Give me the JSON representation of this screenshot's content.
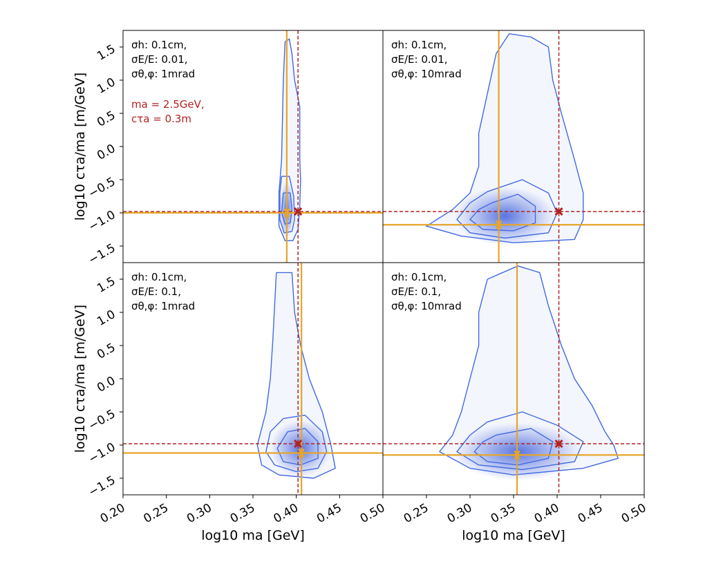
{
  "chart_data": [
    {
      "type": "heatmap",
      "panel": "top-left",
      "annotations": [
        "σh:    0.1cm,",
        "σE/E: 0.01,",
        "σθ,φ: 1mrad"
      ],
      "truth_label": [
        "ma = 2.5GeV,",
        "cτa = 0.3m"
      ],
      "xlim": [
        0.2,
        0.5
      ],
      "ylim": [
        -1.75,
        1.75
      ],
      "truth": {
        "x": 0.402,
        "y": -0.98
      },
      "estimate": {
        "x": 0.389,
        "y": -1.0
      },
      "density_peak": {
        "x": 0.389,
        "y": -0.95
      },
      "contours": [
        [
          [
            0.387,
            1.58
          ],
          [
            0.392,
            1.62
          ],
          [
            0.395,
            1.4
          ],
          [
            0.398,
            1.0
          ],
          [
            0.404,
            0.6
          ],
          [
            0.404,
            0.2
          ],
          [
            0.404,
            -0.2
          ],
          [
            0.405,
            -0.5
          ],
          [
            0.404,
            -0.9
          ],
          [
            0.402,
            -1.25
          ],
          [
            0.396,
            -1.42
          ],
          [
            0.387,
            -1.42
          ],
          [
            0.38,
            -1.2
          ],
          [
            0.38,
            -0.7
          ],
          [
            0.383,
            -0.2
          ],
          [
            0.384,
            0.4
          ],
          [
            0.385,
            1.0
          ],
          [
            0.387,
            1.58
          ]
        ],
        [
          [
            0.383,
            -0.45
          ],
          [
            0.392,
            -0.45
          ],
          [
            0.397,
            -0.75
          ],
          [
            0.398,
            -1.1
          ],
          [
            0.395,
            -1.28
          ],
          [
            0.386,
            -1.3
          ],
          [
            0.381,
            -1.1
          ],
          [
            0.381,
            -0.7
          ],
          [
            0.383,
            -0.45
          ]
        ],
        [
          [
            0.385,
            -0.7
          ],
          [
            0.393,
            -0.7
          ],
          [
            0.395,
            -0.95
          ],
          [
            0.393,
            -1.15
          ],
          [
            0.387,
            -1.17
          ],
          [
            0.383,
            -1.0
          ],
          [
            0.385,
            -0.7
          ]
        ]
      ]
    },
    {
      "type": "heatmap",
      "panel": "top-right",
      "annotations": [
        "σh:    0.1cm,",
        "σE/E: 0.01,",
        "σθ,φ: 10mrad"
      ],
      "truth_label": [],
      "xlim": [
        0.2,
        0.5
      ],
      "ylim": [
        -1.75,
        1.75
      ],
      "truth": {
        "x": 0.402,
        "y": -0.98
      },
      "estimate": {
        "x": 0.333,
        "y": -1.18
      },
      "density_peak": {
        "x": 0.34,
        "y": -1.05
      },
      "contours": [
        [
          [
            0.345,
            1.7
          ],
          [
            0.37,
            1.65
          ],
          [
            0.39,
            1.5
          ],
          [
            0.395,
            1.0
          ],
          [
            0.405,
            0.5
          ],
          [
            0.42,
            -0.2
          ],
          [
            0.43,
            -0.7
          ],
          [
            0.43,
            -1.1
          ],
          [
            0.42,
            -1.4
          ],
          [
            0.35,
            -1.45
          ],
          [
            0.29,
            -1.35
          ],
          [
            0.25,
            -1.2
          ],
          [
            0.28,
            -0.95
          ],
          [
            0.3,
            -0.7
          ],
          [
            0.31,
            -0.3
          ],
          [
            0.31,
            0.2
          ],
          [
            0.32,
            0.8
          ],
          [
            0.33,
            1.4
          ],
          [
            0.345,
            1.7
          ]
        ],
        [
          [
            0.32,
            -0.68
          ],
          [
            0.36,
            -0.5
          ],
          [
            0.39,
            -0.7
          ],
          [
            0.4,
            -1.0
          ],
          [
            0.39,
            -1.3
          ],
          [
            0.34,
            -1.38
          ],
          [
            0.3,
            -1.3
          ],
          [
            0.285,
            -1.1
          ],
          [
            0.3,
            -0.85
          ],
          [
            0.32,
            -0.68
          ]
        ],
        [
          [
            0.325,
            -0.85
          ],
          [
            0.355,
            -0.72
          ],
          [
            0.375,
            -0.9
          ],
          [
            0.375,
            -1.15
          ],
          [
            0.35,
            -1.27
          ],
          [
            0.315,
            -1.25
          ],
          [
            0.3,
            -1.1
          ],
          [
            0.31,
            -0.95
          ],
          [
            0.325,
            -0.85
          ]
        ]
      ]
    },
    {
      "type": "heatmap",
      "panel": "bottom-left",
      "annotations": [
        "σh:    0.1cm,",
        "σE/E: 0.1,",
        "σθ,φ: 1mrad"
      ],
      "truth_label": [],
      "xlim": [
        0.2,
        0.5
      ],
      "ylim": [
        -1.75,
        1.75
      ],
      "truth": {
        "x": 0.402,
        "y": -0.98
      },
      "estimate": {
        "x": 0.406,
        "y": -1.12
      },
      "density_peak": {
        "x": 0.405,
        "y": -1.05
      },
      "contours": [
        [
          [
            0.377,
            1.6
          ],
          [
            0.395,
            1.6
          ],
          [
            0.398,
            1.0
          ],
          [
            0.405,
            0.5
          ],
          [
            0.415,
            0.0
          ],
          [
            0.43,
            -0.5
          ],
          [
            0.44,
            -1.0
          ],
          [
            0.445,
            -1.35
          ],
          [
            0.42,
            -1.5
          ],
          [
            0.38,
            -1.45
          ],
          [
            0.36,
            -1.3
          ],
          [
            0.355,
            -1.0
          ],
          [
            0.365,
            -0.5
          ],
          [
            0.37,
            0.0
          ],
          [
            0.373,
            0.6
          ],
          [
            0.377,
            1.6
          ]
        ],
        [
          [
            0.385,
            -0.6
          ],
          [
            0.41,
            -0.55
          ],
          [
            0.43,
            -0.8
          ],
          [
            0.435,
            -1.1
          ],
          [
            0.425,
            -1.35
          ],
          [
            0.4,
            -1.4
          ],
          [
            0.375,
            -1.3
          ],
          [
            0.365,
            -1.1
          ],
          [
            0.37,
            -0.8
          ],
          [
            0.385,
            -0.6
          ]
        ],
        [
          [
            0.39,
            -0.8
          ],
          [
            0.41,
            -0.75
          ],
          [
            0.425,
            -0.95
          ],
          [
            0.425,
            -1.2
          ],
          [
            0.405,
            -1.3
          ],
          [
            0.385,
            -1.25
          ],
          [
            0.378,
            -1.05
          ],
          [
            0.39,
            -0.8
          ]
        ]
      ]
    },
    {
      "type": "heatmap",
      "panel": "bottom-right",
      "annotations": [
        "σh:    0.1cm,",
        "σE/E: 0.1,",
        "σθ,φ: 10mrad"
      ],
      "truth_label": [],
      "xlim": [
        0.2,
        0.5
      ],
      "ylim": [
        -1.75,
        1.75
      ],
      "truth": {
        "x": 0.402,
        "y": -0.98
      },
      "estimate": {
        "x": 0.354,
        "y": -1.15
      },
      "density_peak": {
        "x": 0.355,
        "y": -1.1
      },
      "contours": [
        [
          [
            0.32,
            1.5
          ],
          [
            0.355,
            1.7
          ],
          [
            0.38,
            1.6
          ],
          [
            0.39,
            1.1
          ],
          [
            0.405,
            0.5
          ],
          [
            0.42,
            0.0
          ],
          [
            0.44,
            -0.4
          ],
          [
            0.455,
            -0.8
          ],
          [
            0.465,
            -1.0
          ],
          [
            0.47,
            -1.2
          ],
          [
            0.43,
            -1.35
          ],
          [
            0.35,
            -1.45
          ],
          [
            0.3,
            -1.35
          ],
          [
            0.265,
            -1.1
          ],
          [
            0.28,
            -0.85
          ],
          [
            0.29,
            -0.5
          ],
          [
            0.3,
            0.0
          ],
          [
            0.31,
            0.5
          ],
          [
            0.31,
            1.0
          ],
          [
            0.32,
            1.5
          ]
        ],
        [
          [
            0.32,
            -0.65
          ],
          [
            0.36,
            -0.5
          ],
          [
            0.4,
            -0.7
          ],
          [
            0.43,
            -0.95
          ],
          [
            0.42,
            -1.25
          ],
          [
            0.36,
            -1.37
          ],
          [
            0.31,
            -1.3
          ],
          [
            0.285,
            -1.1
          ],
          [
            0.3,
            -0.85
          ],
          [
            0.32,
            -0.65
          ]
        ],
        [
          [
            0.33,
            -0.85
          ],
          [
            0.37,
            -0.75
          ],
          [
            0.395,
            -0.95
          ],
          [
            0.39,
            -1.2
          ],
          [
            0.355,
            -1.3
          ],
          [
            0.32,
            -1.25
          ],
          [
            0.305,
            -1.1
          ],
          [
            0.315,
            -0.95
          ],
          [
            0.33,
            -0.85
          ]
        ]
      ]
    }
  ],
  "axes": {
    "xlabel": "log10 ma [GeV]",
    "ylabel": "log10 cτa/ma [m/GeV]",
    "xticks_left": [
      "0.20",
      "0.25",
      "0.30",
      "0.35",
      "0.40",
      "0.45",
      "0.50"
    ],
    "xticks_right": [
      "0.25",
      "0.30",
      "0.35",
      "0.40",
      "0.45",
      "0.50"
    ],
    "yticks": [
      "1.5",
      "1.0",
      "0.5",
      "0.0",
      "−0.5",
      "−1.0",
      "−1.5"
    ],
    "ytick_values": [
      1.5,
      1.0,
      0.5,
      0.0,
      -0.5,
      -1.0,
      -1.5
    ],
    "xtick_values_left": [
      0.2,
      0.25,
      0.3,
      0.35,
      0.4,
      0.45,
      0.5
    ],
    "xtick_values_right": [
      0.25,
      0.3,
      0.35,
      0.4,
      0.45,
      0.5
    ]
  },
  "colors": {
    "contour": "#4169e1",
    "truth": "#b22222",
    "estimate": "#e6a52a",
    "density": "#3f5fd9"
  }
}
